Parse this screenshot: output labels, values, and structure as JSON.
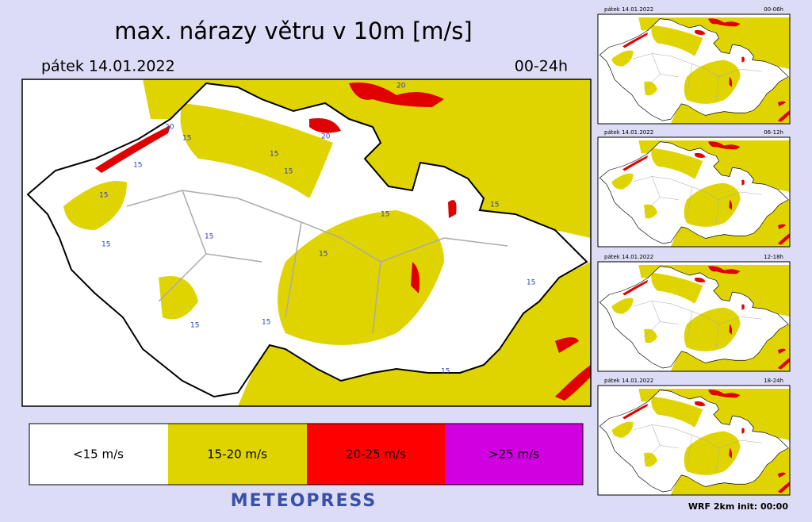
{
  "header": {
    "title": "max. nárazy větru v 10m [m/s]",
    "date": "pátek 14.01.2022",
    "period": "00-24h"
  },
  "map": {
    "contour_labels": [
      "15",
      "15",
      "15",
      "15",
      "15",
      "15",
      "15",
      "15",
      "15",
      "15",
      "15",
      "15",
      "15",
      "15",
      "20",
      "20",
      "20"
    ]
  },
  "legend": [
    "<15 m/s",
    "15-20 m/s",
    "20-25 m/s",
    ">25 m/s"
  ],
  "brand": "METEOPRESS",
  "panels": [
    {
      "date": "pátek 14.01.2022",
      "period": "00-06h"
    },
    {
      "date": "pátek 14.01.2022",
      "period": "06-12h"
    },
    {
      "date": "pátek 14.01.2022",
      "period": "12-18h"
    },
    {
      "date": "pátek 14.01.2022",
      "period": "18-24h"
    }
  ],
  "footer": "WRF 2km init: 00:00"
}
